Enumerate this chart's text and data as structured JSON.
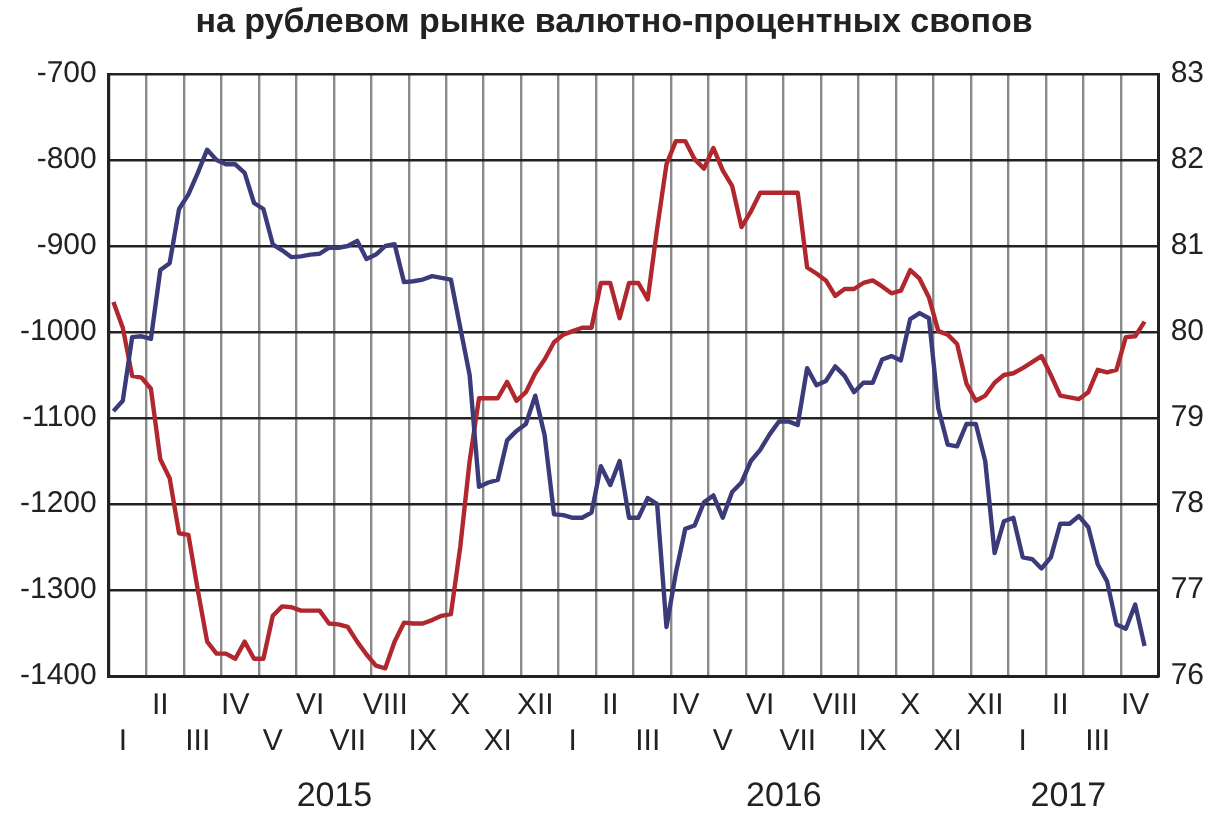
{
  "chart_data": {
    "type": "line",
    "title": "на рублевом рынке валютно-процентных свопов",
    "categories": [
      null,
      "I",
      null,
      null,
      null,
      "II",
      null,
      null,
      null,
      "III",
      null,
      null,
      null,
      "IV",
      null,
      null,
      null,
      "V",
      null,
      null,
      null,
      "VI",
      null,
      null,
      null,
      "VII",
      null,
      null,
      null,
      "VIII",
      null,
      null,
      null,
      "IX",
      null,
      null,
      null,
      "X",
      null,
      null,
      null,
      "XI",
      null,
      null,
      null,
      "XII",
      null,
      null,
      null,
      "I",
      null,
      null,
      null,
      "II",
      null,
      null,
      null,
      "III",
      null,
      null,
      null,
      "IV",
      null,
      null,
      null,
      "V",
      null,
      null,
      null,
      "VI",
      null,
      null,
      null,
      "VII",
      null,
      null,
      null,
      "VIII",
      null,
      null,
      null,
      "IX",
      null,
      null,
      null,
      "X",
      null,
      null,
      null,
      "XI",
      null,
      null,
      null,
      "XII",
      null,
      null,
      null,
      "I",
      null,
      null,
      null,
      "II",
      null,
      null,
      null,
      "III",
      null,
      null,
      null,
      "IV",
      null,
      null
    ],
    "annotations": [
      "2015",
      "2016",
      "2017"
    ],
    "ylim": [
      -1400,
      -700
    ],
    "y2lim": [
      76,
      83
    ],
    "yticks": [
      -1400,
      -1300,
      -1200,
      -1100,
      -1000,
      -900,
      -800,
      -700
    ],
    "y2ticks": [
      76,
      77,
      78,
      79,
      80,
      81,
      82,
      83
    ],
    "grid": true,
    "legend": false,
    "marker": "none",
    "line_style": "solid",
    "series": [
      {
        "color": "#3b3b7a",
        "values": [
          -1092,
          -1080,
          -1006,
          -1005,
          -1008,
          -928,
          -920,
          -857,
          -840,
          -815,
          -788,
          -800,
          -805,
          -805,
          -815,
          -850,
          -857,
          -898,
          -905,
          -913,
          -912,
          -910,
          -909,
          -902,
          -902,
          -900,
          -894,
          -915,
          -910,
          -900,
          -898,
          -942,
          -941,
          -939,
          -935,
          -937,
          -939,
          -995,
          -1050,
          -1180,
          -1175,
          -1172,
          -1126,
          -1115,
          -1107,
          -1074,
          -1120,
          -1212,
          -1213,
          -1216,
          -1216,
          -1210,
          -1156,
          -1178,
          -1150,
          -1216,
          -1216,
          -1193,
          -1200,
          -1343,
          -1280,
          -1229,
          -1225,
          -1198,
          -1190,
          -1216,
          -1186,
          -1175,
          -1150,
          -1137,
          -1119,
          -1104,
          -1104,
          -1108,
          -1042,
          -1062,
          -1057,
          -1040,
          -1051,
          -1070,
          -1059,
          -1059,
          -1032,
          -1028,
          -1033,
          -985,
          -978,
          -984,
          -1089,
          -1131,
          -1133,
          -1107,
          -1107,
          -1150,
          -1257,
          -1220,
          -1216,
          -1262,
          -1264,
          -1275,
          -1262,
          -1223,
          -1223,
          -1214,
          -1227,
          -1270,
          -1290,
          -1340,
          -1345,
          -1317,
          -1365,
          null
        ]
      },
      {
        "color": "#b0282e",
        "axis": "y2",
        "values": [
          80.35,
          80.05,
          79.49,
          79.47,
          79.34,
          78.52,
          78.3,
          77.66,
          77.64,
          77.0,
          76.4,
          76.26,
          76.26,
          76.2,
          76.4,
          76.2,
          76.2,
          76.7,
          76.81,
          76.8,
          76.76,
          76.76,
          76.76,
          76.61,
          76.6,
          76.57,
          76.4,
          76.25,
          76.12,
          76.09,
          76.4,
          76.62,
          76.61,
          76.61,
          76.65,
          76.7,
          76.72,
          77.5,
          78.5,
          79.23,
          79.23,
          79.23,
          79.42,
          79.2,
          79.3,
          79.52,
          79.68,
          79.88,
          79.97,
          80.01,
          80.05,
          80.05,
          80.57,
          80.57,
          80.16,
          80.57,
          80.57,
          80.38,
          81.2,
          81.95,
          82.22,
          82.22,
          82.01,
          81.9,
          82.14,
          81.88,
          81.7,
          81.22,
          81.4,
          81.62,
          81.62,
          81.62,
          81.62,
          81.62,
          80.75,
          80.68,
          80.6,
          80.42,
          80.5,
          80.5,
          80.57,
          80.6,
          80.53,
          80.45,
          80.48,
          80.72,
          80.62,
          80.4,
          80.01,
          79.97,
          79.86,
          79.4,
          79.2,
          79.26,
          79.41,
          79.5,
          79.52,
          79.58,
          79.65,
          79.72,
          79.5,
          79.26,
          79.24,
          79.22,
          79.3,
          79.56,
          79.53,
          79.56,
          79.94,
          79.95,
          80.12,
          null
        ]
      }
    ]
  }
}
